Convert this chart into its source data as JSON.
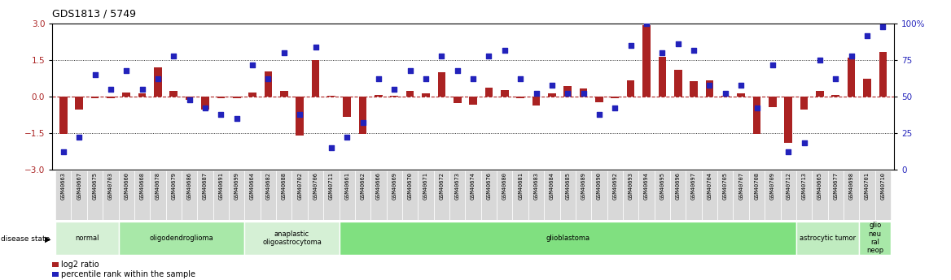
{
  "title": "GDS1813 / 5749",
  "samples": [
    "GSM40663",
    "GSM40667",
    "GSM40675",
    "GSM40703",
    "GSM40660",
    "GSM40668",
    "GSM40678",
    "GSM40679",
    "GSM40686",
    "GSM40687",
    "GSM40691",
    "GSM40699",
    "GSM40664",
    "GSM40682",
    "GSM40688",
    "GSM40702",
    "GSM40706",
    "GSM40711",
    "GSM40661",
    "GSM40662",
    "GSM40666",
    "GSM40669",
    "GSM40670",
    "GSM40671",
    "GSM40672",
    "GSM40673",
    "GSM40674",
    "GSM40676",
    "GSM40680",
    "GSM40681",
    "GSM40683",
    "GSM40684",
    "GSM40685",
    "GSM40689",
    "GSM40690",
    "GSM40692",
    "GSM40693",
    "GSM40694",
    "GSM40695",
    "GSM40696",
    "GSM40697",
    "GSM40704",
    "GSM40705",
    "GSM40707",
    "GSM40708",
    "GSM40709",
    "GSM40712",
    "GSM40713",
    "GSM40665",
    "GSM40677",
    "GSM40698",
    "GSM40701",
    "GSM40710"
  ],
  "log2_ratio": [
    -1.55,
    -0.55,
    -0.08,
    -0.05,
    0.18,
    0.15,
    1.2,
    0.22,
    -0.12,
    -0.55,
    -0.05,
    -0.08,
    0.18,
    1.05,
    0.22,
    -1.6,
    1.5,
    0.05,
    -0.85,
    -1.55,
    0.08,
    0.05,
    0.22,
    0.15,
    1.0,
    -0.28,
    -0.35,
    0.38,
    0.28,
    -0.08,
    -0.38,
    0.12,
    0.45,
    0.32,
    -0.25,
    -0.08,
    0.68,
    2.95,
    1.65,
    1.1,
    0.65,
    0.68,
    0.05,
    0.12,
    -1.55,
    -0.45,
    -1.9,
    -0.55,
    0.25,
    0.08,
    1.6,
    0.75,
    1.85
  ],
  "percentile": [
    12,
    22,
    65,
    55,
    68,
    55,
    62,
    78,
    48,
    42,
    38,
    35,
    72,
    62,
    80,
    38,
    84,
    15,
    22,
    32,
    62,
    55,
    68,
    62,
    78,
    68,
    62,
    78,
    82,
    62,
    52,
    58,
    52,
    52,
    38,
    42,
    85,
    100,
    80,
    86,
    82,
    58,
    52,
    58,
    42,
    72,
    12,
    18,
    75,
    62,
    78,
    92,
    98
  ],
  "disease_groups": [
    {
      "label": "normal",
      "start": 0,
      "end": 4,
      "color": "#d5f0d5"
    },
    {
      "label": "oligodendroglioma",
      "start": 4,
      "end": 12,
      "color": "#a8e8a8"
    },
    {
      "label": "anaplastic\noligoastrocytoma",
      "start": 12,
      "end": 18,
      "color": "#d5f0d5"
    },
    {
      "label": "glioblastoma",
      "start": 18,
      "end": 47,
      "color": "#80e080"
    },
    {
      "label": "astrocytic tumor",
      "start": 47,
      "end": 51,
      "color": "#c0ecC0"
    },
    {
      "label": "glio\nneu\nral\nneop",
      "start": 51,
      "end": 53,
      "color": "#a8e8a8"
    }
  ],
  "bar_color": "#aa2222",
  "dot_color": "#2222bb",
  "ylim_left": [
    -3,
    3
  ],
  "ylim_right": [
    0,
    100
  ],
  "yticks_left": [
    -3,
    -1.5,
    0,
    1.5,
    3
  ],
  "yticks_right": [
    0,
    25,
    50,
    75,
    100
  ],
  "bg_color": "#ffffff"
}
